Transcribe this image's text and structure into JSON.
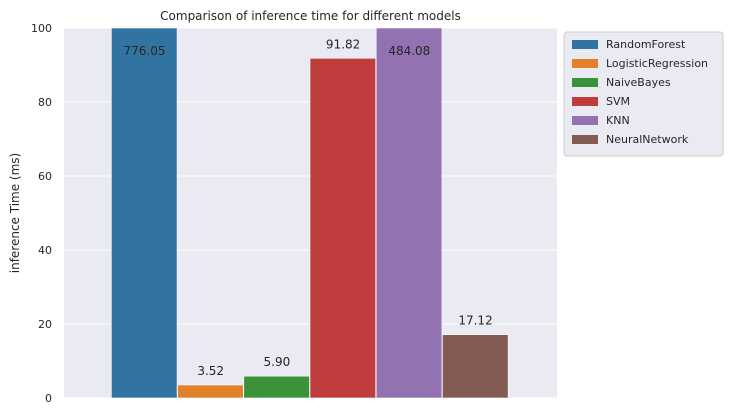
{
  "chart_data": {
    "type": "bar",
    "title": "Comparison of inference time for different models",
    "xlabel": "",
    "ylabel": "inference Time (ms)",
    "ylim": [
      0,
      100
    ],
    "yticks": [
      0,
      20,
      40,
      60,
      80,
      100
    ],
    "grid": true,
    "legend_position": "outside-top-right",
    "series": [
      {
        "name": "RandomForest",
        "value": 776.05,
        "label": "776.05",
        "color": "#3274a1"
      },
      {
        "name": "LogisticRegression",
        "value": 3.52,
        "label": "3.52",
        "color": "#e1812c"
      },
      {
        "name": "NaiveBayes",
        "value": 5.9,
        "label": "5.90",
        "color": "#3a923a"
      },
      {
        "name": "SVM",
        "value": 91.82,
        "label": "91.82",
        "color": "#c03d3e"
      },
      {
        "name": "KNN",
        "value": 484.08,
        "label": "484.08",
        "color": "#9372b2"
      },
      {
        "name": "NeuralNetwork",
        "value": 17.12,
        "label": "17.12",
        "color": "#845b53"
      }
    ]
  },
  "style": {
    "plot_background": "#eaeaf2",
    "grid_color": "#ffffff"
  }
}
